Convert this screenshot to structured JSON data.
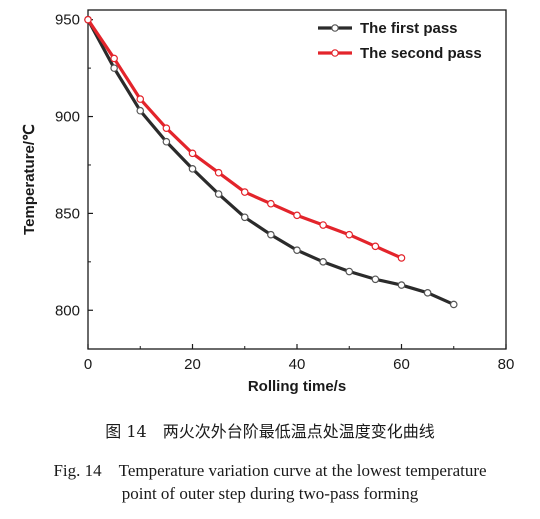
{
  "chart_data": {
    "type": "line",
    "title": "",
    "xlabel": "Rolling time/s",
    "ylabel": "Temperature/℃",
    "xlim": [
      0,
      80
    ],
    "ylim": [
      780,
      955
    ],
    "xticks": [
      "0",
      "20",
      "40",
      "60",
      "80"
    ],
    "yticks": [
      "800",
      "850",
      "900",
      "950"
    ],
    "grid": false,
    "legend_position": "top-right",
    "series": [
      {
        "name": "The first pass",
        "color": "#2b2b2b",
        "x": [
          0,
          5,
          10,
          15,
          20,
          25,
          30,
          35,
          40,
          45,
          50,
          55,
          60,
          65,
          70
        ],
        "y": [
          950,
          925,
          903,
          887,
          873,
          860,
          848,
          839,
          831,
          825,
          820,
          816,
          813,
          809,
          803
        ]
      },
      {
        "name": "The second pass",
        "color": "#e3242b",
        "x": [
          0,
          5,
          10,
          15,
          20,
          25,
          30,
          35,
          40,
          45,
          50,
          55,
          60
        ],
        "y": [
          950,
          930,
          909,
          894,
          881,
          871,
          861,
          855,
          849,
          844,
          839,
          833,
          827
        ]
      }
    ]
  },
  "caption": {
    "cn": "图 14　两火次外台阶最低温点处温度变化曲线",
    "en_line1": "Fig. 14　Temperature variation curve at the lowest temperature",
    "en_line2": "point of outer step during two-pass forming"
  }
}
